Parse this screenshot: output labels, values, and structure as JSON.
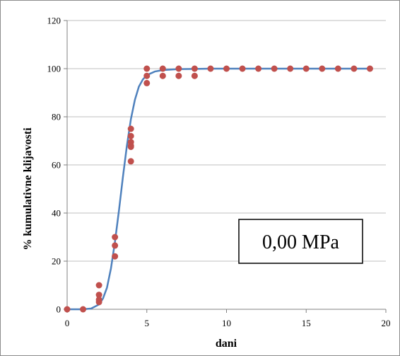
{
  "chart_data": {
    "type": "scatter",
    "title": "",
    "xlabel": "dani",
    "ylabel": "% kumulativne klijavosti",
    "xlim": [
      0,
      20
    ],
    "ylim": [
      0,
      120
    ],
    "x_ticks": [
      "0",
      "5",
      "10",
      "15",
      "20"
    ],
    "y_ticks": [
      "0",
      "20",
      "40",
      "60",
      "80",
      "100",
      "120"
    ],
    "grid": "horizontal",
    "annotation": "0,00 MPa",
    "colors": {
      "points": "#c0504d",
      "curve": "#4f81bd",
      "grid": "#bfbfbf"
    },
    "series": [
      {
        "type": "scatter",
        "x": [
          0,
          1,
          2,
          2,
          2,
          2,
          3,
          3,
          3,
          4,
          4,
          4,
          4,
          4,
          4,
          5,
          5,
          5,
          6,
          6,
          7,
          7,
          8,
          8,
          9,
          10,
          11,
          12,
          13,
          14,
          15,
          16,
          17,
          18,
          19
        ],
        "y": [
          0,
          0,
          3,
          4,
          6,
          10,
          22,
          26.5,
          30,
          61.5,
          67.5,
          69.5,
          72,
          75,
          68,
          94,
          97,
          100,
          97,
          100,
          97,
          100,
          97,
          100,
          100,
          100,
          100,
          100,
          100,
          100,
          100,
          100,
          100,
          100,
          100
        ]
      },
      {
        "type": "line",
        "x": [
          0,
          1,
          1.5,
          2,
          2.25,
          2.5,
          2.75,
          3,
          3.25,
          3.5,
          3.75,
          4,
          4.25,
          4.5,
          4.75,
          5,
          5.5,
          6,
          7,
          8,
          9,
          10,
          12,
          15,
          19
        ],
        "y": [
          0,
          0,
          0.3,
          2,
          4.5,
          9,
          17,
          28,
          41,
          55,
          68,
          79,
          87,
          92.5,
          95.5,
          97.3,
          98.8,
          99.4,
          99.8,
          99.9,
          100,
          100,
          100,
          100,
          100
        ]
      }
    ]
  }
}
